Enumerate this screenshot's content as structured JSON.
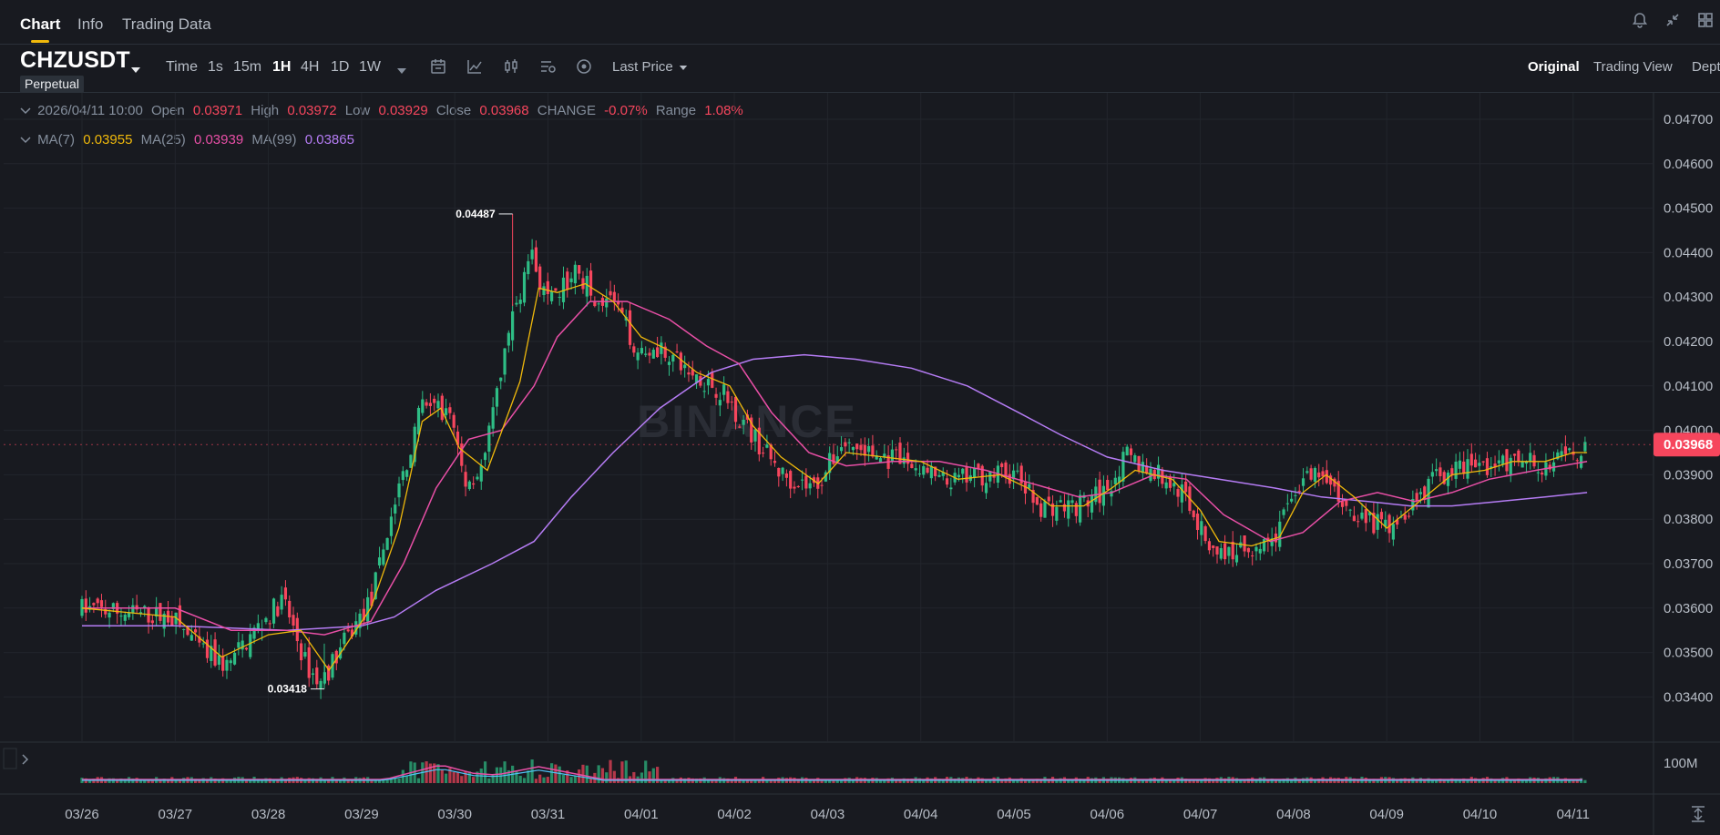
{
  "tabs": [
    {
      "label": "Chart",
      "active": true
    },
    {
      "label": "Info",
      "active": false
    },
    {
      "label": "Trading Data",
      "active": false
    }
  ],
  "symbol": {
    "name": "CHZUSDT",
    "badge": "Perpetual"
  },
  "timeframes": [
    "Time",
    "1s",
    "15m",
    "1H",
    "4H",
    "1D",
    "1W"
  ],
  "active_timeframe": "1H",
  "toolbar_icons": [
    "dropdown-caret-icon",
    "calendar-icon",
    "indicator-icon",
    "candle-type-icon",
    "settings-icon",
    "depth-icon"
  ],
  "price_type": "Last Price",
  "views": [
    {
      "label": "Original",
      "active": true
    },
    {
      "label": "Trading View",
      "active": false
    },
    {
      "label": "Depth",
      "active": false
    }
  ],
  "ohlc": {
    "datetime": "2026/04/11 10:00",
    "open_label": "Open",
    "open": "0.03971",
    "high_label": "High",
    "high": "0.03972",
    "low_label": "Low",
    "low": "0.03929",
    "close_label": "Close",
    "close": "0.03968",
    "change_label": "CHANGE",
    "change": "-0.07%",
    "range_label": "Range",
    "range": "1.08%"
  },
  "ma": [
    {
      "label": "MA(7)",
      "value": "0.03955",
      "color": "#f0b90b"
    },
    {
      "label": "MA(25)",
      "value": "0.03939",
      "color": "#e84fa6"
    },
    {
      "label": "MA(99)",
      "value": "0.03865",
      "color": "#b57cf4"
    }
  ],
  "colors": {
    "up": "#2ebd85",
    "down": "#f6465d",
    "accent": "#f0b90b",
    "grid": "#22252c"
  },
  "watermark": "BINANCE",
  "volume_axis_label": "100M",
  "chart_data": {
    "type": "candlestick",
    "x_ticks": [
      "03/26",
      "03/27",
      "03/28",
      "03/29",
      "03/30",
      "03/31",
      "04/01",
      "04/02",
      "04/03",
      "04/04",
      "04/05",
      "04/06",
      "04/07",
      "04/08",
      "04/09",
      "04/10",
      "04/11"
    ],
    "y_ticks": [
      "0.04700",
      "0.04600",
      "0.04500",
      "0.04400",
      "0.04300",
      "0.04200",
      "0.04100",
      "0.04000",
      "0.03900",
      "0.03800",
      "0.03700",
      "0.03600",
      "0.03500",
      "0.03400"
    ],
    "ylim": [
      0.0333,
      0.048
    ],
    "last_price": "0.03968",
    "period_high": "0.04487",
    "period_low": "0.03418",
    "close_path": [
      [
        0,
        0.036
      ],
      [
        1,
        0.0358
      ],
      [
        1.35,
        0.035
      ],
      [
        1.6,
        0.0347
      ],
      [
        1.9,
        0.0355
      ],
      [
        2.2,
        0.0362
      ],
      [
        2.45,
        0.0347
      ],
      [
        2.6,
        0.0343
      ],
      [
        2.85,
        0.0352
      ],
      [
        3.15,
        0.0362
      ],
      [
        3.35,
        0.038
      ],
      [
        3.7,
        0.0406
      ],
      [
        4.0,
        0.0404
      ],
      [
        4.15,
        0.0388
      ],
      [
        4.35,
        0.0392
      ],
      [
        4.6,
        0.042
      ],
      [
        4.85,
        0.044
      ],
      [
        5.05,
        0.0428
      ],
      [
        5.35,
        0.0436
      ],
      [
        5.55,
        0.043
      ],
      [
        5.75,
        0.0429
      ],
      [
        6.0,
        0.0418
      ],
      [
        6.25,
        0.0419
      ],
      [
        6.5,
        0.0414
      ],
      [
        6.9,
        0.0409
      ],
      [
        7.2,
        0.04
      ],
      [
        7.55,
        0.039
      ],
      [
        7.9,
        0.0387
      ],
      [
        8.2,
        0.0397
      ],
      [
        8.6,
        0.0394
      ],
      [
        9.0,
        0.0392
      ],
      [
        9.3,
        0.0388
      ],
      [
        9.7,
        0.039
      ],
      [
        10.05,
        0.039
      ],
      [
        10.3,
        0.0383
      ],
      [
        10.7,
        0.0383
      ],
      [
        11.0,
        0.0386
      ],
      [
        11.25,
        0.0394
      ],
      [
        11.6,
        0.039
      ],
      [
        11.9,
        0.0385
      ],
      [
        12.1,
        0.0375
      ],
      [
        12.3,
        0.0372
      ],
      [
        12.6,
        0.0374
      ],
      [
        12.85,
        0.0376
      ],
      [
        13.05,
        0.0387
      ],
      [
        13.3,
        0.039
      ],
      [
        13.6,
        0.0383
      ],
      [
        13.85,
        0.038
      ],
      [
        14.0,
        0.0378
      ],
      [
        14.25,
        0.0382
      ],
      [
        14.6,
        0.039
      ],
      [
        14.9,
        0.0392
      ],
      [
        15.2,
        0.0392
      ],
      [
        15.5,
        0.0393
      ],
      [
        15.8,
        0.0392
      ],
      [
        16.05,
        0.0395
      ],
      [
        16.15,
        0.0395
      ]
    ],
    "ma7_path": [
      [
        0,
        0.036
      ],
      [
        1,
        0.0358
      ],
      [
        1.5,
        0.0349
      ],
      [
        2.0,
        0.0354
      ],
      [
        2.35,
        0.0355
      ],
      [
        2.65,
        0.0346
      ],
      [
        3.1,
        0.036
      ],
      [
        3.4,
        0.0378
      ],
      [
        3.65,
        0.0402
      ],
      [
        3.85,
        0.0405
      ],
      [
        4.05,
        0.0396
      ],
      [
        4.35,
        0.0391
      ],
      [
        4.7,
        0.0411
      ],
      [
        4.9,
        0.0432
      ],
      [
        5.1,
        0.0431
      ],
      [
        5.4,
        0.0433
      ],
      [
        5.7,
        0.0429
      ],
      [
        6.0,
        0.0421
      ],
      [
        6.3,
        0.0418
      ],
      [
        6.6,
        0.0413
      ],
      [
        6.95,
        0.041
      ],
      [
        7.2,
        0.0401
      ],
      [
        7.5,
        0.0394
      ],
      [
        7.9,
        0.0388
      ],
      [
        8.2,
        0.0395
      ],
      [
        8.6,
        0.0394
      ],
      [
        9.0,
        0.0393
      ],
      [
        9.4,
        0.0389
      ],
      [
        9.85,
        0.039
      ],
      [
        10.15,
        0.0387
      ],
      [
        10.4,
        0.0383
      ],
      [
        10.75,
        0.0383
      ],
      [
        11.05,
        0.0387
      ],
      [
        11.3,
        0.0391
      ],
      [
        11.7,
        0.0389
      ],
      [
        12.0,
        0.0382
      ],
      [
        12.2,
        0.0375
      ],
      [
        12.55,
        0.0374
      ],
      [
        12.85,
        0.0376
      ],
      [
        13.1,
        0.0386
      ],
      [
        13.35,
        0.039
      ],
      [
        13.65,
        0.0385
      ],
      [
        14.0,
        0.0378
      ],
      [
        14.35,
        0.0384
      ],
      [
        14.7,
        0.039
      ],
      [
        15.05,
        0.0391
      ],
      [
        15.35,
        0.0393
      ],
      [
        15.7,
        0.0393
      ],
      [
        16.0,
        0.0395
      ],
      [
        16.15,
        0.0395
      ]
    ],
    "ma25_path": [
      [
        0,
        0.036
      ],
      [
        1,
        0.036
      ],
      [
        1.6,
        0.0355
      ],
      [
        2.2,
        0.0355
      ],
      [
        2.6,
        0.0354
      ],
      [
        3.1,
        0.0357
      ],
      [
        3.45,
        0.037
      ],
      [
        3.8,
        0.0387
      ],
      [
        4.15,
        0.0398
      ],
      [
        4.5,
        0.04
      ],
      [
        4.85,
        0.041
      ],
      [
        5.1,
        0.0421
      ],
      [
        5.45,
        0.0429
      ],
      [
        5.85,
        0.0429
      ],
      [
        6.3,
        0.0425
      ],
      [
        6.7,
        0.0419
      ],
      [
        7.05,
        0.0415
      ],
      [
        7.4,
        0.0404
      ],
      [
        7.8,
        0.0395
      ],
      [
        8.2,
        0.0392
      ],
      [
        8.7,
        0.0393
      ],
      [
        9.2,
        0.0393
      ],
      [
        9.7,
        0.0391
      ],
      [
        10.2,
        0.0388
      ],
      [
        10.7,
        0.0385
      ],
      [
        11.05,
        0.0386
      ],
      [
        11.5,
        0.039
      ],
      [
        11.85,
        0.0389
      ],
      [
        12.25,
        0.0381
      ],
      [
        12.75,
        0.0375
      ],
      [
        13.1,
        0.0377
      ],
      [
        13.5,
        0.0384
      ],
      [
        13.9,
        0.0386
      ],
      [
        14.3,
        0.0384
      ],
      [
        14.7,
        0.0386
      ],
      [
        15.1,
        0.0389
      ],
      [
        15.6,
        0.0391
      ],
      [
        16.15,
        0.0393
      ]
    ],
    "ma99_path": [
      [
        0,
        0.0356
      ],
      [
        1,
        0.0356
      ],
      [
        2.2,
        0.0355
      ],
      [
        3.0,
        0.0356
      ],
      [
        3.35,
        0.0358
      ],
      [
        3.8,
        0.0364
      ],
      [
        4.4,
        0.037
      ],
      [
        4.85,
        0.0375
      ],
      [
        5.25,
        0.0385
      ],
      [
        5.7,
        0.0395
      ],
      [
        6.2,
        0.0405
      ],
      [
        6.75,
        0.0413
      ],
      [
        7.2,
        0.0416
      ],
      [
        7.75,
        0.0417
      ],
      [
        8.3,
        0.0416
      ],
      [
        8.9,
        0.0414
      ],
      [
        9.5,
        0.041
      ],
      [
        10.05,
        0.0404
      ],
      [
        10.5,
        0.0399
      ],
      [
        11.0,
        0.0394
      ],
      [
        11.6,
        0.0391
      ],
      [
        12.2,
        0.0389
      ],
      [
        12.8,
        0.0387
      ],
      [
        13.3,
        0.0385
      ],
      [
        13.8,
        0.0384
      ],
      [
        14.25,
        0.0383
      ],
      [
        14.7,
        0.0383
      ],
      [
        15.2,
        0.0384
      ],
      [
        15.7,
        0.0385
      ],
      [
        16.15,
        0.0386
      ]
    ]
  }
}
